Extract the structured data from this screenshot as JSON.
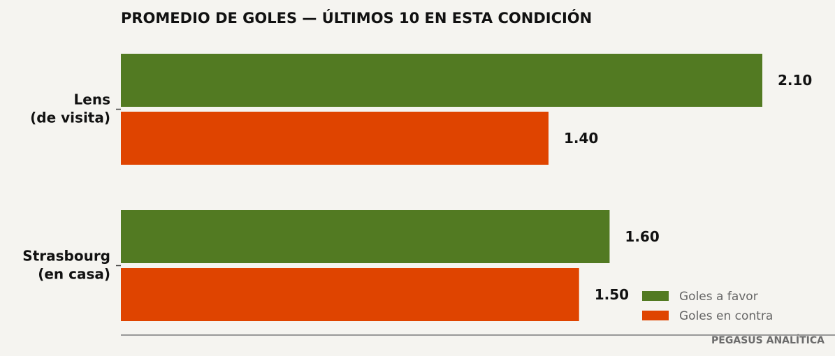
{
  "chart_data": {
    "type": "bar",
    "orientation": "horizontal",
    "title": "PROMEDIO DE GOLES — ÚLTIMOS 10 EN ESTA CONDICIÓN",
    "categories": [
      "Lens\n(de visita)",
      "Strasbourg\n(en casa)"
    ],
    "series": [
      {
        "name": "Goles a favor",
        "color": "#527a22",
        "values": [
          2.1,
          1.6
        ],
        "labels": [
          "2.10",
          "1.60"
        ]
      },
      {
        "name": "Goles en contra",
        "color": "#df4400",
        "values": [
          1.4,
          1.5
        ],
        "labels": [
          "1.40",
          "1.50"
        ]
      }
    ],
    "xlim": [
      0,
      2.3
    ],
    "grid": false,
    "legend_position": "bottom-right"
  },
  "footer": "PEGASUS ANALÍTICA"
}
